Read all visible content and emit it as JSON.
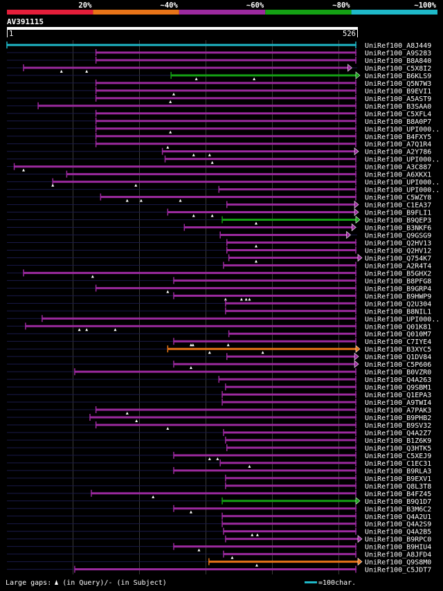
{
  "colors": {
    "background": "#000000",
    "text": "#ffffff",
    "grid": "#3a3a3a",
    "cyan": "#1fb9c9",
    "magenta": "#9c2a9f",
    "green": "#14a114",
    "orange": "#e87418",
    "red": "#e41e3a",
    "navy": "#1a1a4a",
    "ruler": "#ffffff",
    "gap_marker": "#ffffff"
  },
  "legend": {
    "items": [
      {
        "label": "20%",
        "color": "#e41e3a"
      },
      {
        "label": "~40%",
        "color": "#e87418"
      },
      {
        "label": "~60%",
        "color": "#9c2a9f"
      },
      {
        "label": "~80%",
        "color": "#14a114"
      },
      {
        "label": "~100%",
        "color": "#1fb9c9"
      }
    ]
  },
  "query": {
    "id": "AV391115",
    "start_label": "1",
    "end_label": "526",
    "length": 526
  },
  "footer": {
    "gaps_text": "Large gaps: ",
    "query_text": "(in Query)/",
    "subject_dash": "-",
    "subject_text": " (in Subject)",
    "scale_text": "=100char."
  },
  "hits": [
    {
      "name": "UniRef100_A8J449",
      "start": 1,
      "end": 526,
      "color": "cyan",
      "tri": false,
      "gaps": []
    },
    {
      "name": "UniRef100_A9S283",
      "start": 135,
      "end": 526,
      "color": "magenta",
      "tri": false,
      "gaps": []
    },
    {
      "name": "UniRef100_B8A840",
      "start": 135,
      "end": 526,
      "color": "magenta",
      "tri": false,
      "gaps": []
    },
    {
      "name": "UniRef100_C5X8I2",
      "start": 26,
      "end": 514,
      "color": "magenta",
      "tri": true,
      "gaps": [
        83,
        121
      ]
    },
    {
      "name": "UniRef100_B6KLS9",
      "start": 248,
      "end": 526,
      "color": "green",
      "tri": true,
      "gaps": [
        286,
        373
      ]
    },
    {
      "name": "UniRef100_Q5N7W3",
      "start": 135,
      "end": 526,
      "color": "magenta",
      "tri": false,
      "gaps": []
    },
    {
      "name": "UniRef100_B9EVI1",
      "start": 135,
      "end": 526,
      "color": "magenta",
      "tri": false,
      "gaps": [
        252
      ]
    },
    {
      "name": "UniRef100_A5AST9",
      "start": 135,
      "end": 526,
      "color": "magenta",
      "tri": false,
      "gaps": [
        247
      ]
    },
    {
      "name": "UniRef100_B3SAA0",
      "start": 48,
      "end": 526,
      "color": "magenta",
      "tri": false,
      "gaps": []
    },
    {
      "name": "UniRef100_C5XFL4",
      "start": 135,
      "end": 526,
      "color": "magenta",
      "tri": false,
      "gaps": []
    },
    {
      "name": "UniRef100_B8A0P7",
      "start": 135,
      "end": 526,
      "color": "magenta",
      "tri": false,
      "gaps": []
    },
    {
      "name": "UniRef100_UPI000..",
      "start": 135,
      "end": 526,
      "color": "magenta",
      "tri": false,
      "gaps": [
        247
      ]
    },
    {
      "name": "UniRef100_B4FXY5",
      "start": 135,
      "end": 526,
      "color": "magenta",
      "tri": false,
      "gaps": []
    },
    {
      "name": "UniRef100_A7Q1R4",
      "start": 135,
      "end": 526,
      "color": "magenta",
      "tri": false,
      "gaps": [
        243
      ]
    },
    {
      "name": "UniRef100_A2Y786",
      "start": 235,
      "end": 524,
      "color": "magenta",
      "tri": true,
      "gaps": [
        282,
        306
      ]
    },
    {
      "name": "UniRef100_UPI000..",
      "start": 239,
      "end": 526,
      "color": "magenta",
      "tri": false,
      "gaps": [
        310
      ]
    },
    {
      "name": "UniRef100_A3C887",
      "start": 12,
      "end": 526,
      "color": "magenta",
      "tri": false,
      "gaps": [
        26
      ]
    },
    {
      "name": "UniRef100_A6XKX1",
      "start": 91,
      "end": 526,
      "color": "magenta",
      "tri": false,
      "gaps": []
    },
    {
      "name": "UniRef100_UPI000..",
      "start": 70,
      "end": 526,
      "color": "magenta",
      "tri": false,
      "gaps": [
        70,
        195
      ]
    },
    {
      "name": "UniRef100_UPI000..",
      "start": 320,
      "end": 526,
      "color": "magenta",
      "tri": false,
      "gaps": []
    },
    {
      "name": "UniRef100_C5WZY8",
      "start": 142,
      "end": 526,
      "color": "magenta",
      "tri": false,
      "gaps": [
        182,
        203,
        262
      ]
    },
    {
      "name": "UniRef100_C1EA37",
      "start": 332,
      "end": 524,
      "color": "magenta",
      "tri": true,
      "gaps": []
    },
    {
      "name": "UniRef100_B9FLI1",
      "start": 243,
      "end": 524,
      "color": "magenta",
      "tri": true,
      "gaps": [
        282,
        310
      ]
    },
    {
      "name": "UniRef100_B9QEP3",
      "start": 325,
      "end": 526,
      "color": "green",
      "tri": true,
      "gaps": [
        376
      ]
    },
    {
      "name": "UniRef100_B3NKF6",
      "start": 268,
      "end": 520,
      "color": "magenta",
      "tri": true,
      "gaps": []
    },
    {
      "name": "UniRef100_Q9GSG9",
      "start": 322,
      "end": 512,
      "color": "magenta",
      "tri": true,
      "gaps": []
    },
    {
      "name": "UniRef100_Q2HV13",
      "start": 332,
      "end": 526,
      "color": "magenta",
      "tri": false,
      "gaps": [
        376
      ]
    },
    {
      "name": "UniRef100_Q2HV12",
      "start": 332,
      "end": 526,
      "color": "magenta",
      "tri": false,
      "gaps": []
    },
    {
      "name": "UniRef100_Q754K7",
      "start": 335,
      "end": 544,
      "color": "magenta",
      "tri": true,
      "gaps": [
        376
      ]
    },
    {
      "name": "UniRef100_A2R4T4",
      "start": 327,
      "end": 526,
      "color": "magenta",
      "tri": false,
      "gaps": []
    },
    {
      "name": "UniRef100_B5GHX2",
      "start": 26,
      "end": 526,
      "color": "magenta",
      "tri": false,
      "gaps": [
        130
      ]
    },
    {
      "name": "UniRef100_B8PFG8",
      "start": 252,
      "end": 526,
      "color": "magenta",
      "tri": false,
      "gaps": []
    },
    {
      "name": "UniRef100_B9GRP4",
      "start": 135,
      "end": 526,
      "color": "magenta",
      "tri": false,
      "gaps": [
        243
      ]
    },
    {
      "name": "UniRef100_B9HWP9",
      "start": 252,
      "end": 526,
      "color": "magenta",
      "tri": false,
      "gaps": [
        330,
        354,
        361,
        366
      ]
    },
    {
      "name": "UniRef100_Q2U304",
      "start": 330,
      "end": 526,
      "color": "magenta",
      "tri": false,
      "gaps": []
    },
    {
      "name": "UniRef100_B8NIL1",
      "start": 330,
      "end": 526,
      "color": "magenta",
      "tri": false,
      "gaps": []
    },
    {
      "name": "UniRef100_UPI000..",
      "start": 54,
      "end": 526,
      "color": "magenta",
      "tri": false,
      "gaps": []
    },
    {
      "name": "UniRef100_Q01K81",
      "start": 29,
      "end": 526,
      "color": "magenta",
      "tri": false,
      "gaps": [
        110,
        121,
        164
      ]
    },
    {
      "name": "UniRef100_Q010M7",
      "start": 335,
      "end": 526,
      "color": "magenta",
      "tri": false,
      "gaps": []
    },
    {
      "name": "UniRef100_C7IYE4",
      "start": 252,
      "end": 526,
      "color": "magenta",
      "tri": false,
      "gaps": [
        278,
        281,
        334
      ]
    },
    {
      "name": "UniRef100_B3XYC5",
      "start": 243,
      "end": 526,
      "color": "orange",
      "tri": true,
      "gaps": [
        306,
        386
      ]
    },
    {
      "name": "UniRef100_Q1DV84",
      "start": 332,
      "end": 524,
      "color": "magenta",
      "tri": true,
      "gaps": []
    },
    {
      "name": "UniRef100_C5P606",
      "start": 252,
      "end": 524,
      "color": "magenta",
      "tri": true,
      "gaps": [
        278
      ]
    },
    {
      "name": "UniRef100_B0VZR0",
      "start": 103,
      "end": 526,
      "color": "magenta",
      "tri": false,
      "gaps": []
    },
    {
      "name": "UniRef100_Q4A263",
      "start": 320,
      "end": 526,
      "color": "magenta",
      "tri": false,
      "gaps": []
    },
    {
      "name": "UniRef100_Q9SBM1",
      "start": 330,
      "end": 526,
      "color": "magenta",
      "tri": false,
      "gaps": []
    },
    {
      "name": "UniRef100_Q1EPA3",
      "start": 325,
      "end": 526,
      "color": "magenta",
      "tri": false,
      "gaps": []
    },
    {
      "name": "UniRef100_A9TWI4",
      "start": 325,
      "end": 526,
      "color": "magenta",
      "tri": false,
      "gaps": []
    },
    {
      "name": "UniRef100_A7PAK3",
      "start": 135,
      "end": 526,
      "color": "magenta",
      "tri": false,
      "gaps": [
        182
      ]
    },
    {
      "name": "UniRef100_B9PHB2",
      "start": 126,
      "end": 526,
      "color": "magenta",
      "tri": false,
      "gaps": [
        196
      ]
    },
    {
      "name": "UniRef100_B9SV32",
      "start": 135,
      "end": 526,
      "color": "magenta",
      "tri": false,
      "gaps": [
        243
      ]
    },
    {
      "name": "UniRef100_Q4A2Z7",
      "start": 327,
      "end": 526,
      "color": "magenta",
      "tri": false,
      "gaps": []
    },
    {
      "name": "UniRef100_B1Z6K9",
      "start": 330,
      "end": 526,
      "color": "magenta",
      "tri": false,
      "gaps": []
    },
    {
      "name": "UniRef100_Q3HTK5",
      "start": 332,
      "end": 526,
      "color": "magenta",
      "tri": false,
      "gaps": []
    },
    {
      "name": "UniRef100_C5XEJ9",
      "start": 252,
      "end": 526,
      "color": "magenta",
      "tri": false,
      "gaps": [
        306,
        318
      ]
    },
    {
      "name": "UniRef100_C1EC31",
      "start": 322,
      "end": 526,
      "color": "magenta",
      "tri": false,
      "gaps": [
        366
      ]
    },
    {
      "name": "UniRef100_B9RLA3",
      "start": 252,
      "end": 526,
      "color": "magenta",
      "tri": false,
      "gaps": []
    },
    {
      "name": "UniRef100_B9EXV1",
      "start": 330,
      "end": 526,
      "color": "magenta",
      "tri": false,
      "gaps": []
    },
    {
      "name": "UniRef100_Q8L3T8",
      "start": 330,
      "end": 526,
      "color": "magenta",
      "tri": false,
      "gaps": []
    },
    {
      "name": "UniRef100_B4FZ45",
      "start": 128,
      "end": 526,
      "color": "magenta",
      "tri": false,
      "gaps": [
        221
      ]
    },
    {
      "name": "UniRef100_B9Q1D7",
      "start": 325,
      "end": 526,
      "color": "green",
      "tri": true,
      "gaps": []
    },
    {
      "name": "UniRef100_B3M6C2",
      "start": 252,
      "end": 526,
      "color": "magenta",
      "tri": false,
      "gaps": [
        278
      ]
    },
    {
      "name": "UniRef100_Q4A2U1",
      "start": 325,
      "end": 526,
      "color": "magenta",
      "tri": false,
      "gaps": []
    },
    {
      "name": "UniRef100_Q4A2S9",
      "start": 325,
      "end": 526,
      "color": "magenta",
      "tri": false,
      "gaps": []
    },
    {
      "name": "UniRef100_Q4A2B5",
      "start": 327,
      "end": 526,
      "color": "magenta",
      "tri": false,
      "gaps": [
        370,
        378
      ]
    },
    {
      "name": "UniRef100_B9RPC0",
      "start": 330,
      "end": 530,
      "color": "magenta",
      "tri": true,
      "gaps": []
    },
    {
      "name": "UniRef100_B9HIU4",
      "start": 252,
      "end": 526,
      "color": "magenta",
      "tri": false,
      "gaps": [
        290
      ]
    },
    {
      "name": "UniRef100_A8JFD4",
      "start": 327,
      "end": 526,
      "color": "magenta",
      "tri": false,
      "gaps": [
        340
      ]
    },
    {
      "name": "UniRef100_Q9S8M0",
      "start": 305,
      "end": 554,
      "color": "orange",
      "tri": true,
      "gaps": [
        377
      ]
    },
    {
      "name": "UniRef100_C5JDT7",
      "start": 103,
      "end": 526,
      "color": "magenta",
      "tri": false,
      "gaps": []
    }
  ]
}
